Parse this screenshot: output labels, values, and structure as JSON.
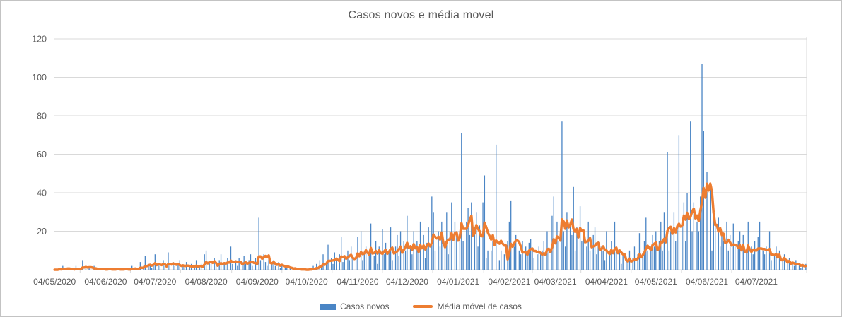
{
  "title": "Casos novos e média movel",
  "legend": {
    "bars_label": "Casos novos",
    "line_label": "Média móvel de casos"
  },
  "colors": {
    "bars": "#4a85c5",
    "line": "#ed7d31",
    "grid": "#d9d9d9",
    "axis": "#d9d9d9",
    "text": "#595959",
    "frame_border": "#c3c3c3"
  },
  "chart_data": {
    "type": "bar",
    "title": "Casos novos e média movel",
    "xlabel": "",
    "ylabel": "",
    "ylim": [
      0,
      120
    ],
    "y_ticks": [
      20,
      40,
      60,
      80,
      100,
      120
    ],
    "grid": "horizontal",
    "legend_position": "bottom",
    "start_date": "04/05/2020",
    "x_tick_labels": [
      "04/05/2020",
      "04/06/2020",
      "04/07/2020",
      "04/08/2020",
      "04/09/2020",
      "04/10/2020",
      "04/11/2020",
      "04/12/2020",
      "04/01/2021",
      "04/02/2021",
      "04/03/2021",
      "04/04/2021",
      "04/05/2021",
      "04/06/2021",
      "04/07/2021"
    ],
    "x_tick_day_index": [
      0,
      31,
      61,
      92,
      123,
      153,
      184,
      214,
      245,
      276,
      304,
      335,
      365,
      396,
      426
    ],
    "moving_average_window": 7,
    "series": [
      {
        "name": "Casos novos",
        "type": "bar",
        "values": [
          0,
          0,
          0,
          1,
          0,
          2,
          0,
          0,
          1,
          0,
          0,
          0,
          0,
          2,
          0,
          0,
          1,
          5,
          0,
          2,
          0,
          1,
          0,
          0,
          2,
          0,
          0,
          0,
          1,
          0,
          0,
          0,
          0,
          1,
          0,
          0,
          0,
          0,
          1,
          0,
          0,
          0,
          0,
          1,
          0,
          0,
          0,
          2,
          0,
          1,
          0,
          0,
          4,
          0,
          2,
          7,
          0,
          3,
          2,
          1,
          3,
          8,
          0,
          3,
          2,
          0,
          5,
          2,
          0,
          9,
          3,
          0,
          4,
          2,
          0,
          3,
          5,
          0,
          2,
          1,
          4,
          0,
          2,
          3,
          0,
          1,
          5,
          0,
          2,
          3,
          0,
          8,
          10,
          0,
          4,
          3,
          0,
          6,
          2,
          0,
          5,
          8,
          0,
          3,
          4,
          6,
          0,
          12,
          3,
          0,
          5,
          2,
          6,
          0,
          4,
          7,
          3,
          0,
          5,
          8,
          2,
          0,
          6,
          0,
          27,
          5,
          0,
          8,
          4,
          2,
          6,
          0,
          3,
          5,
          2,
          0,
          4,
          1,
          3,
          0,
          2,
          1,
          0,
          1,
          0,
          0,
          1,
          0,
          0,
          0,
          0,
          0,
          0,
          0,
          0,
          1,
          0,
          2,
          0,
          3,
          0,
          5,
          2,
          8,
          0,
          4,
          13,
          0,
          6,
          3,
          9,
          5,
          0,
          8,
          17,
          4,
          6,
          0,
          10,
          5,
          12,
          6,
          0,
          9,
          17,
          0,
          20,
          5,
          8,
          12,
          0,
          10,
          24,
          0,
          7,
          15,
          3,
          12,
          0,
          21,
          8,
          14,
          0,
          10,
          22,
          5,
          0,
          12,
          18,
          7,
          20,
          0,
          15,
          10,
          28,
          0,
          12,
          8,
          20,
          0,
          15,
          10,
          25,
          0,
          18,
          6,
          14,
          22,
          0,
          38,
          30,
          10,
          0,
          20,
          12,
          25,
          0,
          15,
          30,
          8,
          20,
          35,
          0,
          25,
          18,
          0,
          20,
          71,
          15,
          0,
          25,
          32,
          18,
          35,
          0,
          22,
          30,
          12,
          23,
          0,
          35,
          49,
          6,
          10,
          0,
          10,
          15,
          0,
          65,
          0,
          5,
          10,
          0,
          8,
          0,
          15,
          25,
          36,
          0,
          12,
          18,
          0,
          10,
          8,
          15,
          0,
          12,
          10,
          14,
          16,
          10,
          6,
          0,
          8,
          12,
          9,
          10,
          15,
          0,
          20,
          10,
          0,
          28,
          38,
          0,
          25,
          15,
          0,
          77,
          20,
          12,
          30,
          0,
          25,
          18,
          43,
          10,
          22,
          0,
          33,
          15,
          20,
          0,
          12,
          25,
          10,
          0,
          18,
          22,
          8,
          15,
          0,
          12,
          10,
          5,
          20,
          0,
          10,
          15,
          0,
          25,
          10,
          0,
          10,
          3,
          8,
          0,
          5,
          4,
          10,
          0,
          6,
          12,
          0,
          8,
          19,
          0,
          8,
          15,
          27,
          10,
          0,
          12,
          18,
          12,
          20,
          0,
          15,
          25,
          10,
          30,
          0,
          61,
          10,
          20,
          0,
          30,
          15,
          22,
          70,
          0,
          25,
          35,
          15,
          40,
          0,
          77,
          20,
          35,
          0,
          25,
          20,
          38,
          107,
          72,
          0,
          51,
          0,
          45,
          10,
          32,
          25,
          0,
          27,
          12,
          20,
          15,
          0,
          25,
          10,
          18,
          0,
          24,
          12,
          0,
          15,
          20,
          0,
          18,
          0,
          10,
          25,
          0,
          12,
          8,
          15,
          0,
          17,
          25,
          0,
          10,
          8,
          12,
          0,
          20,
          5,
          0,
          8,
          12,
          0,
          10,
          0,
          5,
          8,
          0,
          3,
          6,
          0,
          4,
          2,
          5,
          0,
          3,
          1,
          2,
          0,
          3
        ]
      },
      {
        "name": "Média móvel de casos",
        "type": "line",
        "derived_from": "Casos novos",
        "derivation": "7-day trailing moving average of the daily bar values"
      }
    ]
  }
}
